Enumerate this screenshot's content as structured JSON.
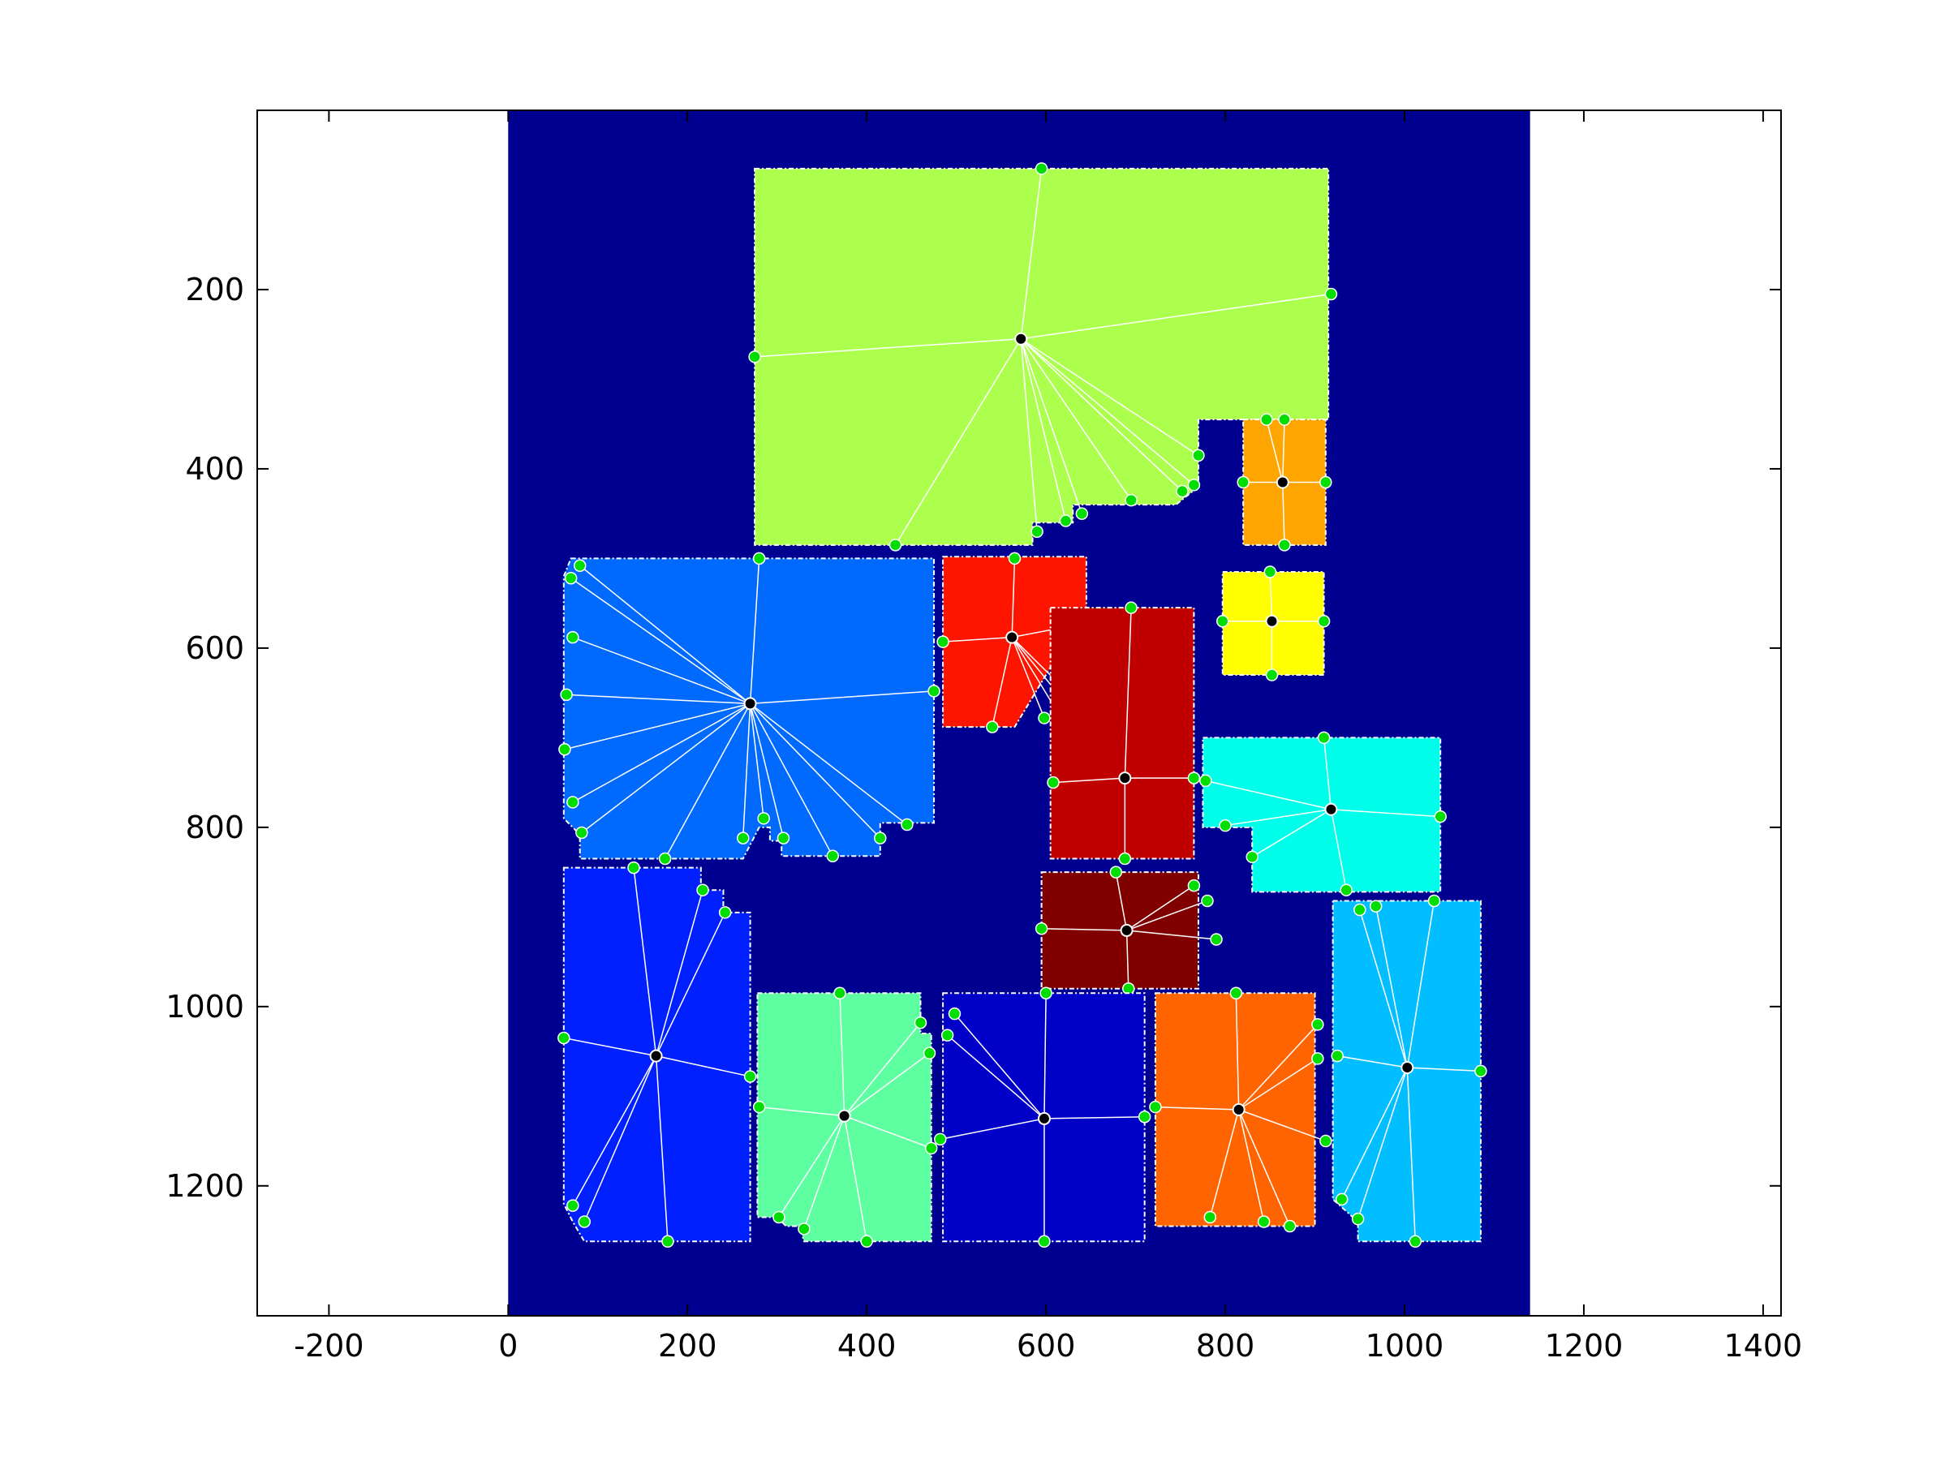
{
  "figure": {
    "type": "region-segmentation-plot",
    "background_color": "#ffffff",
    "axes_frame_color": "#000000",
    "plot_area_color": "#000090",
    "boundary_color": "#ffffff",
    "spoke_color": "#ffffff",
    "boundary_point_color": "#00dd00",
    "centroid_color": "#000000",
    "x_axis": {
      "range": [
        -280,
        1420
      ],
      "ticks": [
        -200,
        0,
        200,
        400,
        600,
        800,
        1000,
        1200,
        1400
      ],
      "tick_labels": [
        "-200",
        "0",
        "200",
        "400",
        "600",
        "800",
        "1000",
        "1200",
        "1400"
      ]
    },
    "y_axis": {
      "reversed": true,
      "range": [
        0,
        1345
      ],
      "ticks": [
        200,
        400,
        600,
        800,
        1000,
        1200
      ],
      "tick_labels": [
        "200",
        "400",
        "600",
        "800",
        "1000",
        "1200"
      ]
    },
    "image_extent": {
      "x": [
        0,
        1140
      ],
      "y": [
        0,
        1345
      ]
    }
  },
  "chart_data": {
    "type": "scatter",
    "title": "",
    "xlabel": "",
    "ylabel": "",
    "xlim": [
      -280,
      1420
    ],
    "ylim": [
      1345,
      0
    ],
    "grid": false,
    "regions": [
      {
        "id": "lime",
        "color": "#adff4d",
        "polygon": [
          [
            275,
            65
          ],
          [
            915,
            65
          ],
          [
            915,
            345
          ],
          [
            770,
            345
          ],
          [
            770,
            420
          ],
          [
            745,
            440
          ],
          [
            630,
            440
          ],
          [
            630,
            460
          ],
          [
            585,
            460
          ],
          [
            585,
            485
          ],
          [
            275,
            485
          ]
        ],
        "centroid": [
          572,
          255
        ],
        "points": [
          [
            595,
            65
          ],
          [
            918,
            205
          ],
          [
            275,
            275
          ],
          [
            770,
            385
          ],
          [
            765,
            418
          ],
          [
            752,
            425
          ],
          [
            695,
            435
          ],
          [
            640,
            450
          ],
          [
            622,
            458
          ],
          [
            590,
            470
          ],
          [
            432,
            485
          ]
        ]
      },
      {
        "id": "orange",
        "color": "#ffa500",
        "polygon": [
          [
            820,
            345
          ],
          [
            912,
            345
          ],
          [
            912,
            485
          ],
          [
            820,
            485
          ]
        ],
        "centroid": [
          864,
          415
        ],
        "points": [
          [
            846,
            345
          ],
          [
            866,
            345
          ],
          [
            820,
            415
          ],
          [
            912,
            415
          ],
          [
            866,
            485
          ]
        ]
      },
      {
        "id": "yellow",
        "color": "#ffff00",
        "polygon": [
          [
            797,
            515
          ],
          [
            910,
            515
          ],
          [
            910,
            630
          ],
          [
            797,
            630
          ]
        ],
        "centroid": [
          852,
          570
        ],
        "points": [
          [
            850,
            515
          ],
          [
            797,
            570
          ],
          [
            910,
            570
          ],
          [
            852,
            630
          ]
        ]
      },
      {
        "id": "sky",
        "color": "#006aff",
        "polygon": [
          [
            70,
            500
          ],
          [
            475,
            500
          ],
          [
            475,
            795
          ],
          [
            415,
            795
          ],
          [
            415,
            832
          ],
          [
            305,
            832
          ],
          [
            305,
            815
          ],
          [
            292,
            815
          ],
          [
            292,
            800
          ],
          [
            280,
            800
          ],
          [
            262,
            835
          ],
          [
            80,
            835
          ],
          [
            80,
            808
          ],
          [
            62,
            790
          ],
          [
            62,
            520
          ]
        ],
        "centroid": [
          270,
          662
        ],
        "points": [
          [
            280,
            500
          ],
          [
            80,
            508
          ],
          [
            70,
            522
          ],
          [
            72,
            588
          ],
          [
            65,
            652
          ],
          [
            63,
            713
          ],
          [
            72,
            772
          ],
          [
            82,
            806
          ],
          [
            175,
            835
          ],
          [
            262,
            812
          ],
          [
            285,
            790
          ],
          [
            307,
            812
          ],
          [
            362,
            832
          ],
          [
            415,
            812
          ],
          [
            445,
            797
          ],
          [
            475,
            648
          ]
        ]
      },
      {
        "id": "red",
        "color": "#ff1400",
        "polygon": [
          [
            485,
            498
          ],
          [
            645,
            498
          ],
          [
            645,
            555
          ],
          [
            565,
            688
          ],
          [
            485,
            688
          ]
        ],
        "centroid": [
          562,
          588
        ],
        "points": [
          [
            565,
            500
          ],
          [
            645,
            572
          ],
          [
            485,
            593
          ],
          [
            540,
            688
          ],
          [
            598,
            678
          ],
          [
            612,
            670
          ],
          [
            625,
            665
          ],
          [
            635,
            660
          ]
        ]
      },
      {
        "id": "darkred",
        "color": "#c00000",
        "polygon": [
          [
            605,
            555
          ],
          [
            765,
            555
          ],
          [
            765,
            835
          ],
          [
            605,
            835
          ]
        ],
        "centroid": [
          688,
          745
        ],
        "points": [
          [
            695,
            555
          ],
          [
            765,
            745
          ],
          [
            608,
            750
          ],
          [
            688,
            835
          ]
        ]
      },
      {
        "id": "cyan",
        "color": "#00ffea",
        "polygon": [
          [
            775,
            700
          ],
          [
            1040,
            700
          ],
          [
            1040,
            872
          ],
          [
            830,
            872
          ],
          [
            830,
            800
          ],
          [
            775,
            800
          ]
        ],
        "centroid": [
          918,
          780
        ],
        "points": [
          [
            910,
            700
          ],
          [
            1040,
            788
          ],
          [
            778,
            748
          ],
          [
            800,
            798
          ],
          [
            830,
            833
          ],
          [
            935,
            870
          ]
        ]
      },
      {
        "id": "maroon",
        "color": "#800000",
        "polygon": [
          [
            595,
            850
          ],
          [
            770,
            850
          ],
          [
            770,
            980
          ],
          [
            595,
            980
          ]
        ],
        "centroid": [
          690,
          915
        ],
        "points": [
          [
            678,
            850
          ],
          [
            765,
            865
          ],
          [
            780,
            882
          ],
          [
            790,
            925
          ],
          [
            692,
            980
          ],
          [
            595,
            913
          ]
        ]
      },
      {
        "id": "blue",
        "color": "#0020ff",
        "polygon": [
          [
            62,
            845
          ],
          [
            215,
            845
          ],
          [
            215,
            870
          ],
          [
            240,
            870
          ],
          [
            240,
            895
          ],
          [
            270,
            895
          ],
          [
            270,
            1262
          ],
          [
            85,
            1262
          ],
          [
            72,
            1240
          ],
          [
            62,
            1220
          ]
        ],
        "centroid": [
          165,
          1055
        ],
        "points": [
          [
            140,
            845
          ],
          [
            217,
            870
          ],
          [
            242,
            895
          ],
          [
            270,
            1078
          ],
          [
            178,
            1262
          ],
          [
            85,
            1240
          ],
          [
            72,
            1222
          ],
          [
            62,
            1035
          ]
        ]
      },
      {
        "id": "mint",
        "color": "#5dffa0",
        "polygon": [
          [
            278,
            985
          ],
          [
            460,
            985
          ],
          [
            460,
            1030
          ],
          [
            472,
            1030
          ],
          [
            472,
            1262
          ],
          [
            330,
            1262
          ],
          [
            325,
            1245
          ],
          [
            310,
            1245
          ],
          [
            300,
            1235
          ],
          [
            278,
            1235
          ]
        ],
        "centroid": [
          375,
          1122
        ],
        "points": [
          [
            370,
            985
          ],
          [
            460,
            1018
          ],
          [
            470,
            1052
          ],
          [
            472,
            1158
          ],
          [
            400,
            1262
          ],
          [
            330,
            1248
          ],
          [
            302,
            1235
          ],
          [
            280,
            1112
          ]
        ]
      },
      {
        "id": "navy",
        "color": "#0000c8",
        "polygon": [
          [
            485,
            985
          ],
          [
            710,
            985
          ],
          [
            710,
            1262
          ],
          [
            485,
            1262
          ]
        ],
        "centroid": [
          598,
          1125
        ],
        "points": [
          [
            600,
            985
          ],
          [
            498,
            1008
          ],
          [
            490,
            1032
          ],
          [
            482,
            1148
          ],
          [
            598,
            1262
          ],
          [
            710,
            1123
          ]
        ]
      },
      {
        "id": "darkorange",
        "color": "#ff6400",
        "polygon": [
          [
            722,
            985
          ],
          [
            900,
            985
          ],
          [
            900,
            1245
          ],
          [
            722,
            1245
          ]
        ],
        "centroid": [
          815,
          1115
        ],
        "points": [
          [
            812,
            985
          ],
          [
            903,
            1020
          ],
          [
            903,
            1058
          ],
          [
            912,
            1150
          ],
          [
            872,
            1245
          ],
          [
            843,
            1240
          ],
          [
            783,
            1235
          ],
          [
            722,
            1112
          ]
        ]
      },
      {
        "id": "azure",
        "color": "#00beff",
        "polygon": [
          [
            920,
            882
          ],
          [
            1085,
            882
          ],
          [
            1085,
            1262
          ],
          [
            948,
            1262
          ],
          [
            948,
            1240
          ],
          [
            920,
            1215
          ]
        ],
        "centroid": [
          1003,
          1068
        ],
        "points": [
          [
            1033,
            882
          ],
          [
            968,
            888
          ],
          [
            950,
            892
          ],
          [
            1085,
            1072
          ],
          [
            1012,
            1262
          ],
          [
            948,
            1237
          ],
          [
            930,
            1215
          ],
          [
            925,
            1055
          ]
        ]
      }
    ]
  }
}
